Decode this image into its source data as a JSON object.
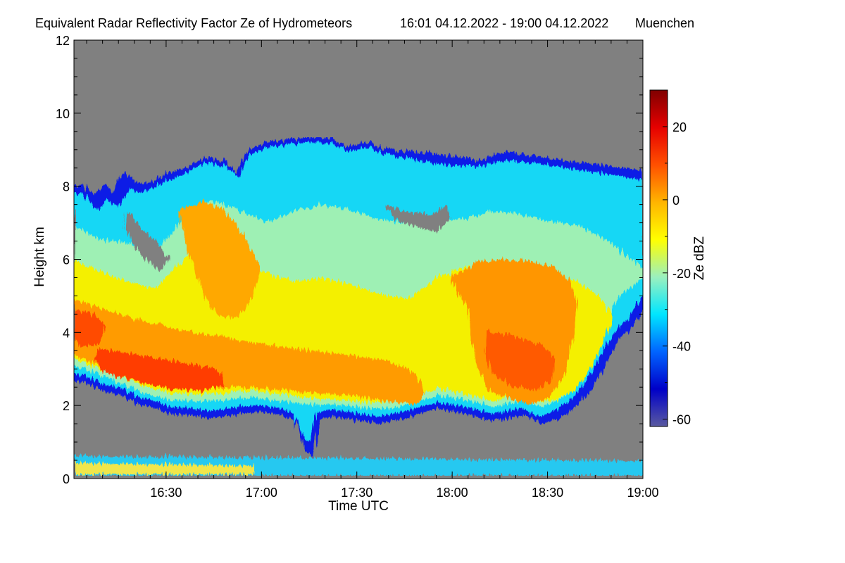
{
  "chart_data": {
    "type": "heatmap",
    "title": "Equivalent Radar Reflectivity Factor Ze of Hydrometeors",
    "time_range": "16:01 04.12.2022 - 19:00 04.12.2022",
    "location": "Muenchen",
    "xlabel": "Time UTC",
    "ylabel": "Height km",
    "x_ticks": [
      "16:30",
      "17:00",
      "17:30",
      "18:00",
      "18:30",
      "19:00"
    ],
    "x_tick_minutes": [
      990,
      1020,
      1050,
      1080,
      1110,
      1140
    ],
    "xlim_minutes": [
      961,
      1140
    ],
    "y_ticks": [
      "0",
      "2",
      "4",
      "6",
      "8",
      "10",
      "12"
    ],
    "y_tick_values": [
      0,
      2,
      4,
      6,
      8,
      10,
      12
    ],
    "ylim": [
      0,
      12
    ],
    "colorbar": {
      "label": "Ze dBZ",
      "ticks": [
        "20",
        "0",
        "-20",
        "-40",
        "-60"
      ],
      "tick_values": [
        20,
        0,
        -20,
        -40,
        -60
      ],
      "range": [
        -62,
        30
      ],
      "colormap": [
        "#5a5aa0",
        "#0000c8",
        "#0064ff",
        "#00e6ff",
        "#9bf0be",
        "#ffff00",
        "#ffb400",
        "#ff5000",
        "#e60000",
        "#800000"
      ]
    },
    "background_color": "#808080"
  }
}
